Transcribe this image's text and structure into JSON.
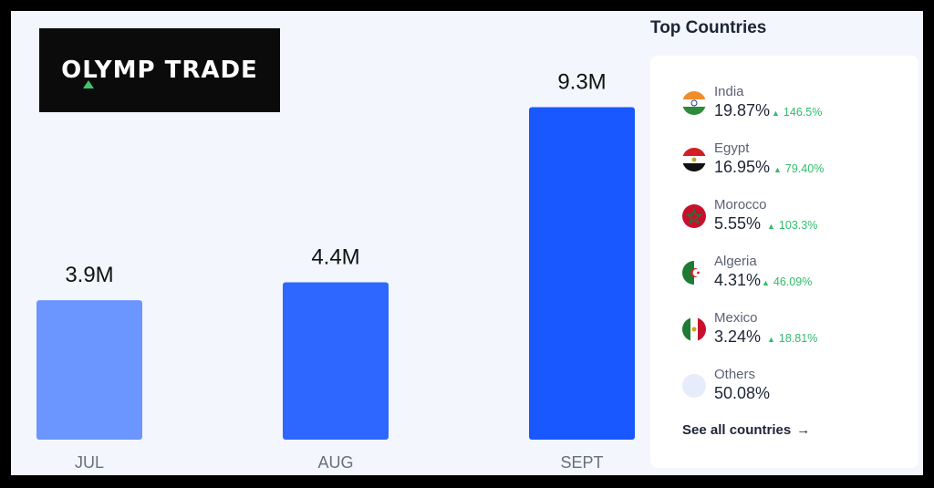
{
  "logo": {
    "text": "OLYMP TRADE"
  },
  "chart_data": {
    "type": "bar",
    "categories": [
      "JUL",
      "AUG",
      "SEPT"
    ],
    "values": [
      3.9,
      4.4,
      9.3
    ],
    "value_labels": [
      "3.9M",
      "4.4M",
      "9.3M"
    ],
    "unit": "M",
    "colors": [
      "#6b95ff",
      "#2e67ff",
      "#1a58ff"
    ],
    "title": "",
    "xlabel": "",
    "ylabel": "",
    "ylim": [
      0,
      10
    ],
    "grid": false
  },
  "panel": {
    "title": "Top Countries",
    "countries": [
      {
        "name": "India",
        "percent": "19.87%",
        "change": "146.5%"
      },
      {
        "name": "Egypt",
        "percent": "16.95%",
        "change": "79.40%"
      },
      {
        "name": "Morocco",
        "percent": "5.55%",
        "change": "103.3%"
      },
      {
        "name": "Algeria",
        "percent": "4.31%",
        "change": "46.09%"
      },
      {
        "name": "Mexico",
        "percent": "3.24%",
        "change": "18.81%"
      },
      {
        "name": "Others",
        "percent": "50.08%",
        "change": ""
      }
    ],
    "see_all": "See all countries",
    "see_all_icon": "arrow-right-icon",
    "up_icon": "triangle-up-icon"
  },
  "colors": {
    "positive": "#2fbd6a",
    "text": "#1d2536",
    "muted": "#5b6272"
  }
}
